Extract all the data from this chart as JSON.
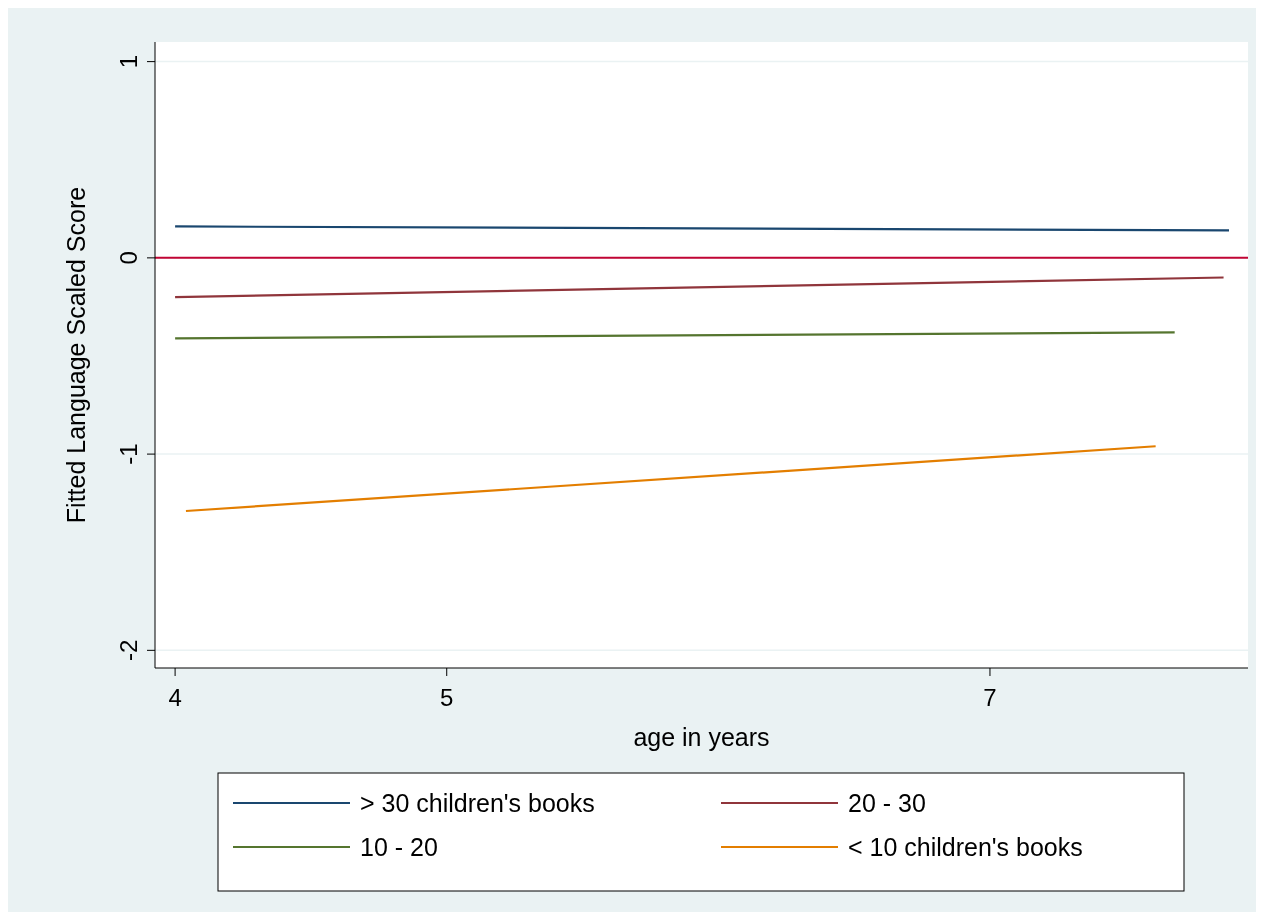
{
  "chart_data": {
    "type": "line",
    "xlabel": "age in years",
    "ylabel": "Fitted Language Scaled Score",
    "xlim": [
      3.926,
      7.95
    ],
    "xticks": [
      4,
      5,
      7
    ],
    "ylim": [
      -2.09,
      1.1
    ],
    "yticks": [
      -2,
      -1,
      0,
      1
    ],
    "grid": "y",
    "legend": "bottom",
    "line_style": "solid",
    "series": [
      {
        "name": "> 30 children's books",
        "color": "#1a476f",
        "x": [
          4,
          7.88
        ],
        "values": [
          0.16,
          0.14
        ]
      },
      {
        "name": "20 - 30",
        "color": "#90353b",
        "x": [
          4,
          7.86
        ],
        "values": [
          -0.2,
          -0.1
        ]
      },
      {
        "name": "10 - 20",
        "color": "#55752f",
        "x": [
          4,
          7.68
        ],
        "values": [
          -0.41,
          -0.38
        ]
      },
      {
        "name": "< 10 children's books",
        "color": "#e37e00",
        "x": [
          4.04,
          7.61
        ],
        "values": [
          -1.29,
          -0.96
        ]
      }
    ],
    "ref_lines": [
      {
        "axis": "y",
        "value": 0,
        "color": "#c10534",
        "line_style": "solid"
      }
    ]
  }
}
